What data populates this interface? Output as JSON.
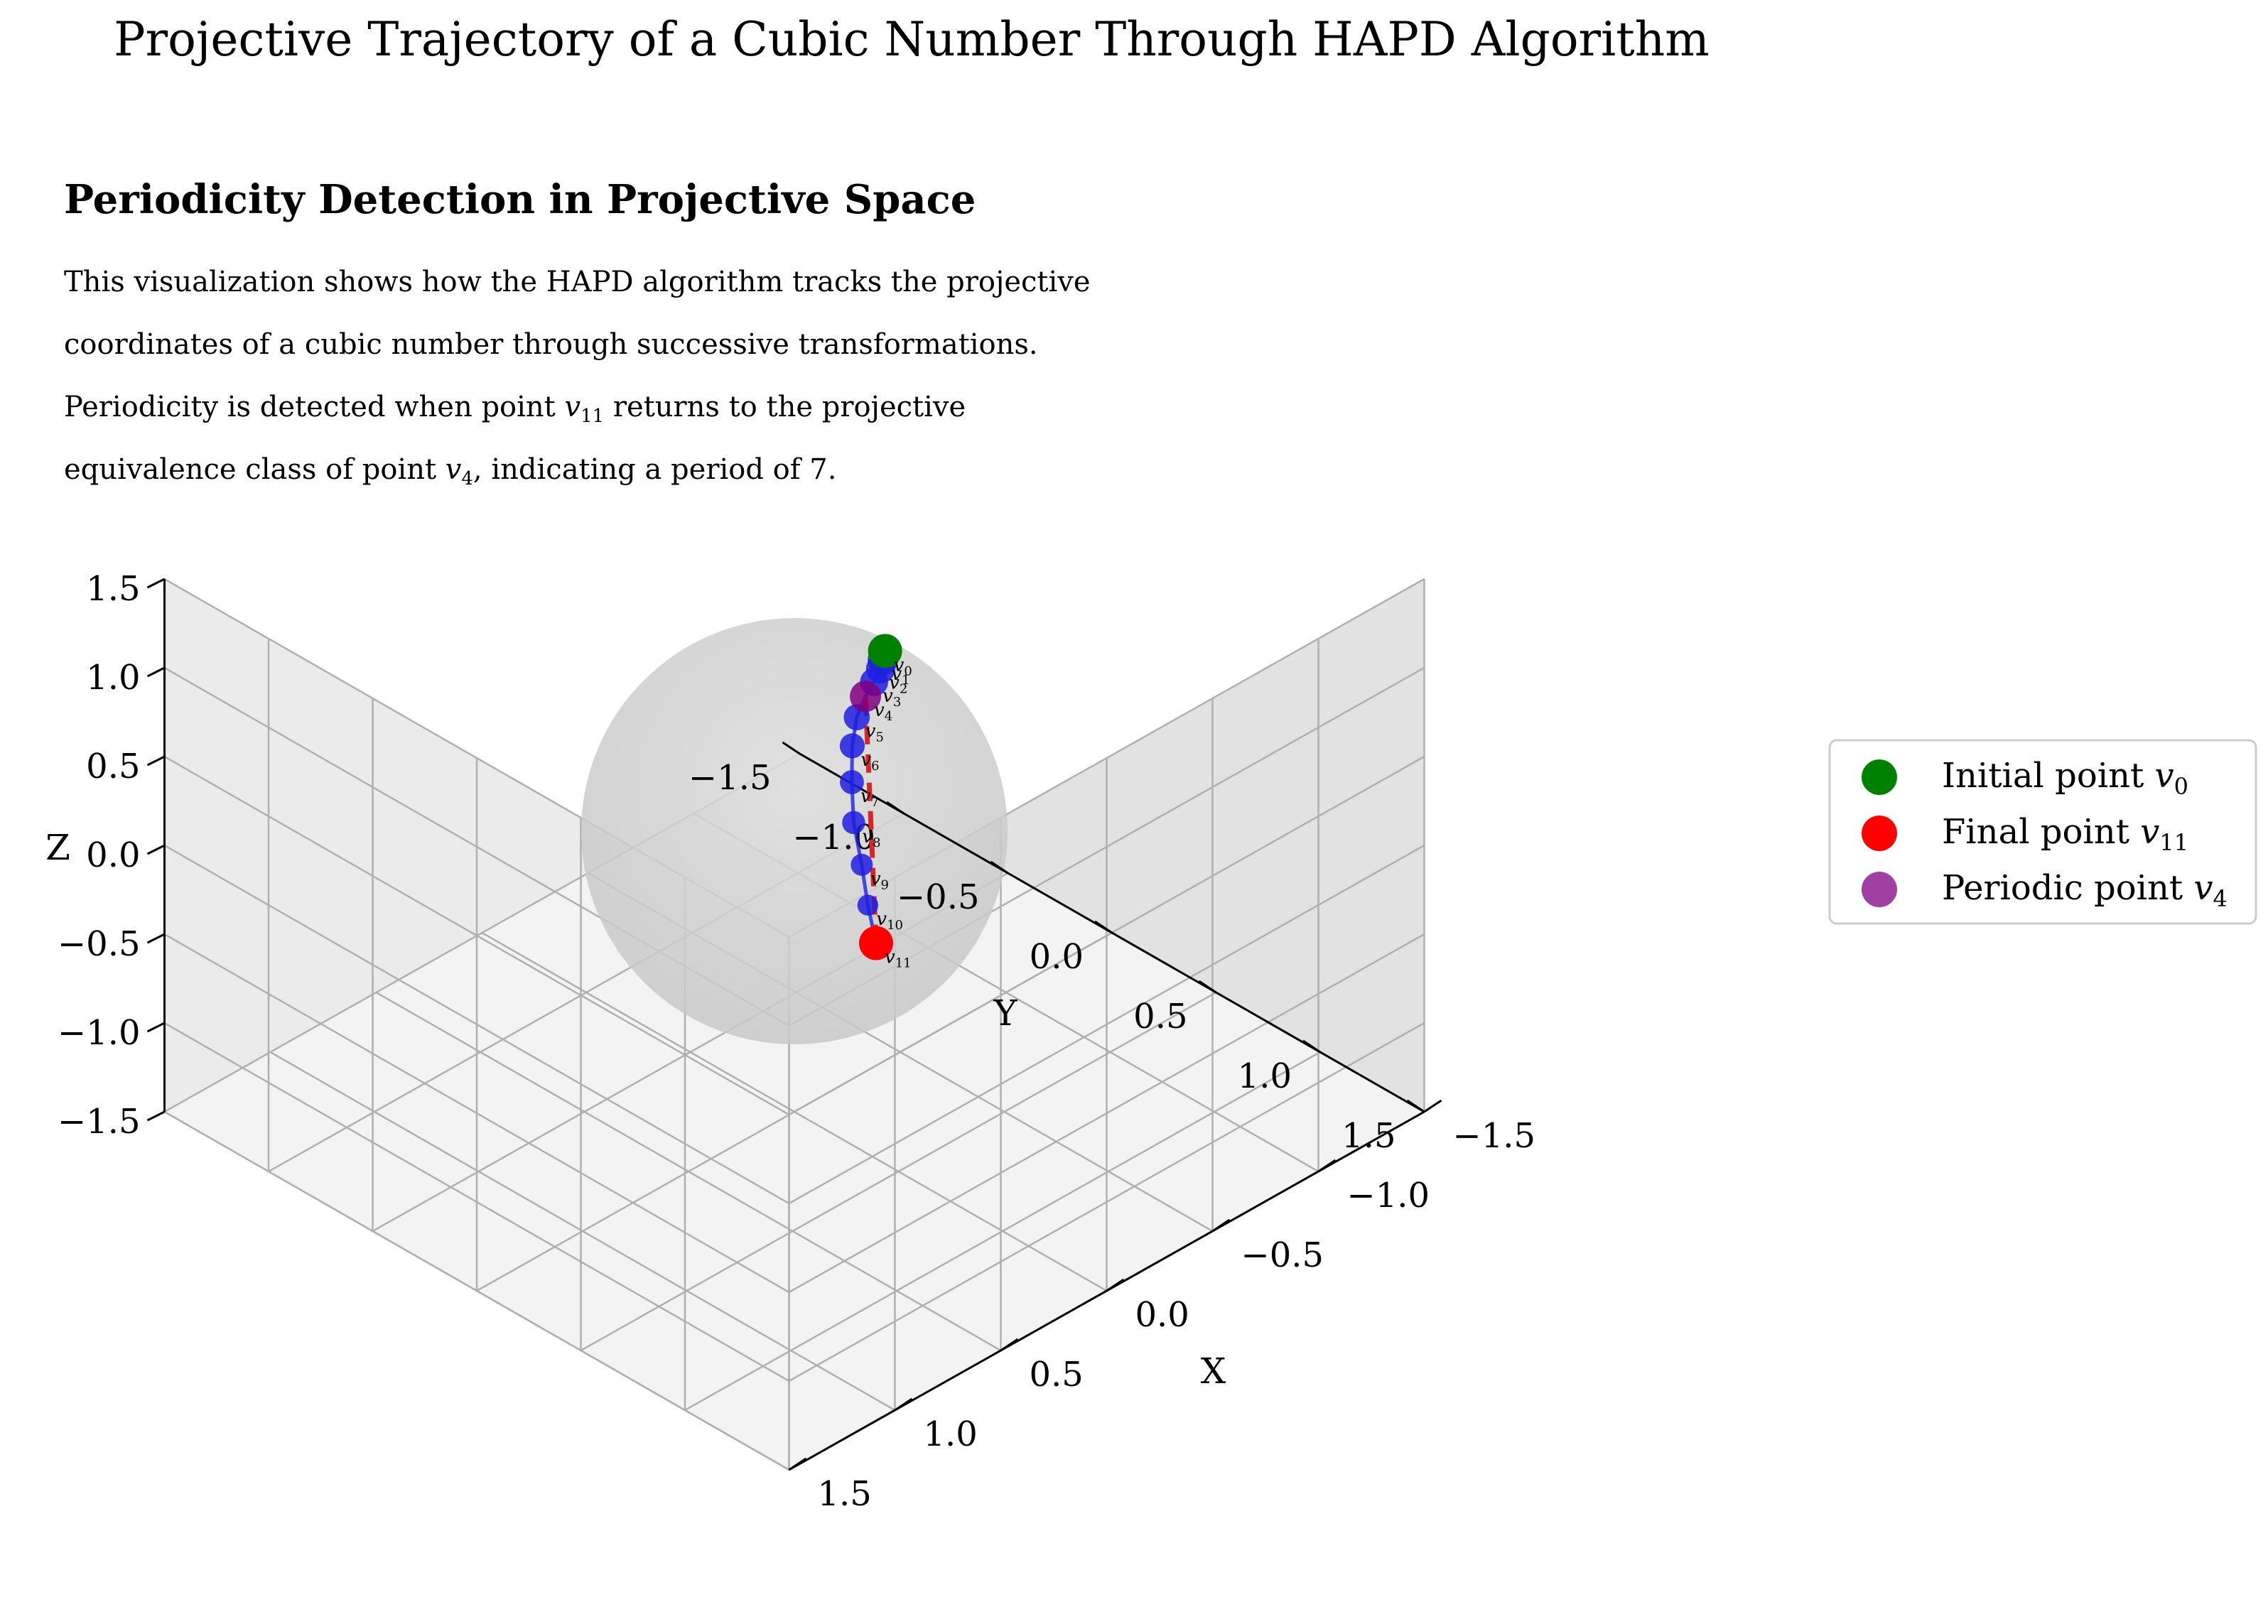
{
  "figure": {
    "title": "Projective Trajectory of a Cubic Number Through HAPD Algorithm"
  },
  "annotation": {
    "title": "Periodicity Detection in Projective Space",
    "line1": "This visualization shows how the HAPD algorithm tracks the projective",
    "line2": "coordinates of a cubic number through successive transformations.",
    "line3_pre": "Periodicity is detected when point ",
    "line3_sym": "v",
    "line3_sub": "11",
    "line3_post": " returns to the projective",
    "line4_pre": "equivalence class of point ",
    "line4_sym": "v",
    "line4_sub": "4",
    "line4_post": ", indicating a period of 7."
  },
  "chart_data": {
    "type": "scatter",
    "projection": "3d",
    "xlabel": "X",
    "ylabel": "Y",
    "zlabel": "Z",
    "xlim": [
      -1.5,
      1.5
    ],
    "ylim": [
      -1.5,
      1.5
    ],
    "zlim": [
      -1.5,
      1.5
    ],
    "ticks": [
      -1.5,
      -1.0,
      -0.5,
      0.0,
      0.5,
      1.0,
      1.5
    ],
    "tick_labels": [
      "−1.5",
      "−1.0",
      "−0.5",
      "0.0",
      "0.5",
      "1.0",
      "1.5"
    ],
    "grid": true,
    "sphere": {
      "radius": 1,
      "color": "#cccccc"
    },
    "trajectory": [
      {
        "label": "v",
        "sub": "0",
        "x": -0.33,
        "y": 0.1,
        "z": 0.94
      },
      {
        "label": "v",
        "sub": "1",
        "x": -0.28,
        "y": 0.14,
        "z": 0.95
      },
      {
        "label": "v",
        "sub": "2",
        "x": -0.23,
        "y": 0.18,
        "z": 0.96
      },
      {
        "label": "v",
        "sub": "3",
        "x": -0.16,
        "y": 0.22,
        "z": 0.96
      },
      {
        "label": "v",
        "sub": "4",
        "x": -0.08,
        "y": 0.26,
        "z": 0.96
      },
      {
        "label": "v",
        "sub": "5",
        "x": 0.02,
        "y": 0.32,
        "z": 0.95
      },
      {
        "label": "v",
        "sub": "6",
        "x": 0.12,
        "y": 0.4,
        "z": 0.91
      },
      {
        "label": "v",
        "sub": "7",
        "x": 0.22,
        "y": 0.5,
        "z": 0.84
      },
      {
        "label": "v",
        "sub": "8",
        "x": 0.31,
        "y": 0.6,
        "z": 0.74
      },
      {
        "label": "v",
        "sub": "9",
        "x": 0.37,
        "y": 0.7,
        "z": 0.61
      },
      {
        "label": "v",
        "sub": "10",
        "x": 0.42,
        "y": 0.78,
        "z": 0.47
      },
      {
        "label": "v",
        "sub": "11",
        "x": 0.44,
        "y": 0.84,
        "z": 0.31
      }
    ],
    "periodic_link": {
      "from": 11,
      "to": 4
    },
    "colors": {
      "trajectory": "#1f1fe0",
      "initial": "#008000",
      "final": "#ff0000",
      "periodic": "#800080",
      "link": "#d62728"
    },
    "legend": {
      "position": "right",
      "entries": [
        {
          "text": "Initial point ",
          "sym": "v",
          "sub": "0",
          "color": "#008000"
        },
        {
          "text": "Final point ",
          "sym": "v",
          "sub": "11",
          "color": "#ff0000"
        },
        {
          "text": "Periodic point ",
          "sym": "v",
          "sub": "4",
          "color": "#800080"
        }
      ]
    }
  }
}
